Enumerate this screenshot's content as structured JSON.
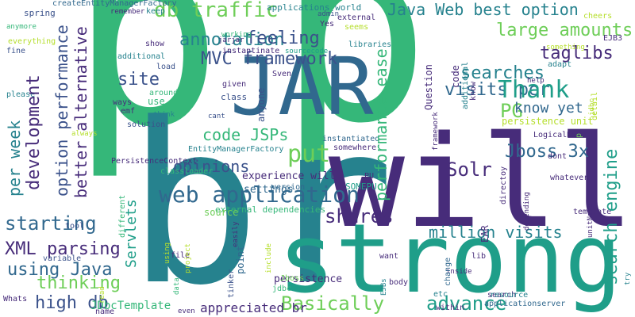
{
  "palette": {
    "background": "#ffffff",
    "dark_purple": "#472c7a",
    "indigo": "#3b528b",
    "blue": "#31688e",
    "teal": "#26828e",
    "green_teal": "#1f9e89",
    "green": "#35b779",
    "light_green": "#6ece58",
    "lime": "#b5de2b"
  },
  "words": [
    {
      "text": "p",
      "color": "#35b779",
      "rotate": false
    },
    {
      "text": "p",
      "color": "#35b779",
      "rotate": false
    },
    {
      "text": "br",
      "color": "#26828e",
      "rotate": false
    },
    {
      "text": "will",
      "color": "#472c7a",
      "rotate": false
    },
    {
      "text": "strong",
      "color": "#1f9e89",
      "rotate": false
    },
    {
      "text": "JAR",
      "color": "#31688e",
      "rotate": false
    },
    {
      "text": "Java Web best option",
      "color": "#26828e",
      "rotate": false
    },
    {
      "text": "db traffic",
      "color": "#6ece58",
      "rotate": false
    },
    {
      "text": "annotation",
      "color": "#26828e",
      "rotate": false
    },
    {
      "text": "feeling",
      "color": "#3b528b",
      "rotate": false
    },
    {
      "text": "MVC framework",
      "color": "#3b528b",
      "rotate": false
    },
    {
      "text": "large amounts",
      "color": "#6ece58",
      "rotate": false
    },
    {
      "text": "taglibs",
      "color": "#472c7a",
      "rotate": false
    },
    {
      "text": "site",
      "color": "#3b528b",
      "rotate": false
    },
    {
      "text": "searches",
      "color": "#26828e",
      "rotate": false
    },
    {
      "text": "visits per",
      "color": "#31688e",
      "rotate": false
    },
    {
      "text": "Thank",
      "color": "#1f9e89",
      "rotate": false
    },
    {
      "text": "PG",
      "color": "#6ece58",
      "rotate": false
    },
    {
      "text": "know yet",
      "color": "#31688e",
      "rotate": false
    },
    {
      "text": "code JSPs",
      "color": "#35b779",
      "rotate": false
    },
    {
      "text": "put",
      "color": "#6ece58",
      "rotate": false
    },
    {
      "text": "opinions",
      "color": "#3b528b",
      "rotate": false
    },
    {
      "text": "Jboss 3x",
      "color": "#31688e",
      "rotate": false
    },
    {
      "text": "web application",
      "color": "#31688e",
      "rotate": false
    },
    {
      "text": "Solr",
      "color": "#472c7a",
      "rotate": false
    },
    {
      "text": "starting",
      "color": "#31688e",
      "rotate": false
    },
    {
      "text": "shares",
      "color": "#472c7a",
      "rotate": false
    },
    {
      "text": "million visits",
      "color": "#26828e",
      "rotate": false
    },
    {
      "text": "XML parsing",
      "color": "#472c7a",
      "rotate": false
    },
    {
      "text": "using Java",
      "color": "#31688e",
      "rotate": false
    },
    {
      "text": "thinking",
      "color": "#6ece58",
      "rotate": false
    },
    {
      "text": "high db",
      "color": "#3b528b",
      "rotate": false
    },
    {
      "text": "Basically",
      "color": "#6ece58",
      "rotate": false
    },
    {
      "text": "advance",
      "color": "#1f9e89",
      "rotate": false
    },
    {
      "text": "appreciated br",
      "color": "#472c7a",
      "rotate": false
    },
    {
      "text": "JDbcTemplate",
      "color": "#35b779",
      "rotate": false
    },
    {
      "text": "persistence",
      "color": "#472c7a",
      "rotate": false
    },
    {
      "text": "experience will",
      "color": "#472c7a",
      "rotate": false
    },
    {
      "text": "settings",
      "color": "#31688e",
      "rotate": false
    },
    {
      "text": "SOMEPU",
      "color": "#1f9e89",
      "rotate": false
    },
    {
      "text": "external dependencies",
      "color": "#35b779",
      "rotate": false
    },
    {
      "text": "PersistenceContext",
      "color": "#472c7a",
      "rotate": false
    },
    {
      "text": "EntityManagerFactory",
      "color": "#26828e",
      "rotate": false
    },
    {
      "text": "createEntityManagerFactory",
      "color": "#31688e",
      "rotate": false
    },
    {
      "text": "applications world",
      "color": "#26828e",
      "rotate": false
    },
    {
      "text": "persistence unit",
      "color": "#b5de2b",
      "rotate": false
    },
    {
      "text": "LogicalName",
      "color": "#472c7a",
      "rotate": false
    },
    {
      "text": "applicationserver",
      "color": "#31688e",
      "rotate": false
    },
    {
      "text": "spring",
      "color": "#3b528b",
      "rotate": false
    },
    {
      "text": "remember",
      "color": "#472c7a",
      "rotate": false
    },
    {
      "text": "keep",
      "color": "#26828e",
      "rotate": false
    },
    {
      "text": "admin",
      "color": "#3b528b",
      "rotate": false
    },
    {
      "text": "Yes",
      "color": "#472c7a",
      "rotate": false
    },
    {
      "text": "external",
      "color": "#472c7a",
      "rotate": false
    },
    {
      "text": "seems",
      "color": "#b5de2b",
      "rotate": false
    },
    {
      "text": "cheers",
      "color": "#b5de2b",
      "rotate": false
    },
    {
      "text": "EJB3",
      "color": "#472c7a",
      "rotate": false
    },
    {
      "text": "anymore",
      "color": "#35b779",
      "rotate": false
    },
    {
      "text": "everything",
      "color": "#b5de2b",
      "rotate": false
    },
    {
      "text": "fine",
      "color": "#3b528b",
      "rotate": false
    },
    {
      "text": "please",
      "color": "#26828e",
      "rotate": false
    },
    {
      "text": "show",
      "color": "#472c7a",
      "rotate": false
    },
    {
      "text": "additional",
      "color": "#26828e",
      "rotate": false
    },
    {
      "text": "load",
      "color": "#3b528b",
      "rotate": false
    },
    {
      "text": "working",
      "color": "#35b779",
      "rotate": false
    },
    {
      "text": "jarjar",
      "color": "#472c7a",
      "rotate": false
    },
    {
      "text": "instantinate",
      "color": "#472c7a",
      "rotate": false
    },
    {
      "text": "libraries",
      "color": "#26828e",
      "rotate": false
    },
    {
      "text": "sourcecode",
      "color": "#1f9e89",
      "rotate": false
    },
    {
      "text": "something",
      "color": "#b5de2b",
      "rotate": false
    },
    {
      "text": "adapt",
      "color": "#26828e",
      "rotate": false
    },
    {
      "text": "help",
      "color": "#472c7a",
      "rotate": false
    },
    {
      "text": "ways",
      "color": "#472c7a",
      "rotate": false
    },
    {
      "text": "emf",
      "color": "#472c7a",
      "rotate": false
    },
    {
      "text": "think",
      "color": "#26828e",
      "rotate": false
    },
    {
      "text": "solution",
      "color": "#3b528b",
      "rotate": false
    },
    {
      "text": "use",
      "color": "#35b779",
      "rotate": false
    },
    {
      "text": "around",
      "color": "#35b779",
      "rotate": false
    },
    {
      "text": "given",
      "color": "#472c7a",
      "rotate": false
    },
    {
      "text": "Sven",
      "color": "#472c7a",
      "rotate": false
    },
    {
      "text": "class",
      "color": "#3b528b",
      "rotate": false
    },
    {
      "text": "cant",
      "color": "#3b528b",
      "rotate": false
    },
    {
      "text": "always",
      "color": "#b5de2b",
      "rotate": false
    },
    {
      "text": "instantiated",
      "color": "#31688e",
      "rotate": false
    },
    {
      "text": "somewhere",
      "color": "#472c7a",
      "rotate": false
    },
    {
      "text": "dont",
      "color": "#472c7a",
      "rotate": false
    },
    {
      "text": "classloader",
      "color": "#35b779",
      "rotate": false
    },
    {
      "text": "PU",
      "color": "#472c7a",
      "rotate": false
    },
    {
      "text": "version",
      "color": "#31688e",
      "rotate": false
    },
    {
      "text": "whatever",
      "color": "#472c7a",
      "rotate": false
    },
    {
      "text": "template",
      "color": "#472c7a",
      "rotate": false
    },
    {
      "text": "tool",
      "color": "#3b528b",
      "rotate": false
    },
    {
      "text": "source",
      "color": "#6ece58",
      "rotate": false
    },
    {
      "text": "Whats",
      "color": "#472c7a",
      "rotate": false
    },
    {
      "text": "variable",
      "color": "#3b528b",
      "rotate": false
    },
    {
      "text": "file",
      "color": "#472c7a",
      "rotate": false
    },
    {
      "text": "want",
      "color": "#472c7a",
      "rotate": false
    },
    {
      "text": "lib",
      "color": "#472c7a",
      "rotate": false
    },
    {
      "text": "inside",
      "color": "#472c7a",
      "rotate": false
    },
    {
      "text": "body",
      "color": "#472c7a",
      "rotate": false
    },
    {
      "text": "etc",
      "color": "#26828e",
      "rotate": false
    },
    {
      "text": "search",
      "color": "#472c7a",
      "rotate": false
    },
    {
      "text": "resource",
      "color": "#26828e",
      "rotate": false
    },
    {
      "text": "within",
      "color": "#472c7a",
      "rotate": false
    },
    {
      "text": "name",
      "color": "#472c7a",
      "rotate": false
    },
    {
      "text": "even",
      "color": "#472c7a",
      "rotate": false
    },
    {
      "text": "jdbc",
      "color": "#35b779",
      "rotate": false
    },
    {
      "text": "Jboss",
      "color": "#6ece58",
      "rotate": false
    },
    {
      "text": "per week",
      "color": "#26828e",
      "rotate": true
    },
    {
      "text": "development",
      "color": "#472c7a",
      "rotate": true
    },
    {
      "text": "option performance",
      "color": "#3b528b",
      "rotate": true
    },
    {
      "text": "better alternative",
      "color": "#472c7a",
      "rotate": true
    },
    {
      "text": "performance ease",
      "color": "#35b779",
      "rotate": true
    },
    {
      "text": "Servlets",
      "color": "#1f9e89",
      "rotate": true
    },
    {
      "text": "search engine",
      "color": "#1f9e89",
      "rotate": true
    },
    {
      "text": "anyone",
      "color": "#3b528b",
      "rotate": true
    },
    {
      "text": "Question",
      "color": "#472c7a",
      "rotate": true
    },
    {
      "text": "framework",
      "color": "#472c7a",
      "rotate": true
    },
    {
      "text": "code",
      "color": "#472c7a",
      "rotate": true
    },
    {
      "text": "know",
      "color": "#472c7a",
      "rotate": true
    },
    {
      "text": "additional",
      "color": "#26828e",
      "rotate": true
    },
    {
      "text": "EAR",
      "color": "#472c7a",
      "rotate": true
    },
    {
      "text": "directoy",
      "color": "#472c7a",
      "rotate": true
    },
    {
      "text": "depending",
      "color": "#472c7a",
      "rotate": true
    },
    {
      "text": "jdbc",
      "color": "#b5de2b",
      "rotate": true
    },
    {
      "text": "detail",
      "color": "#b5de2b",
      "rotate": true
    },
    {
      "text": "different",
      "color": "#35b779",
      "rotate": true
    },
    {
      "text": "easily",
      "color": "#472c7a",
      "rotate": true
    },
    {
      "text": "point",
      "color": "#31688e",
      "rotate": true
    },
    {
      "text": "tinker",
      "color": "#3b528b",
      "rotate": true
    },
    {
      "text": "include",
      "color": "#b5de2b",
      "rotate": true
    },
    {
      "text": "using",
      "color": "#b5de2b",
      "rotate": true
    },
    {
      "text": "project",
      "color": "#b5de2b",
      "rotate": true
    },
    {
      "text": "data",
      "color": "#35b779",
      "rotate": true
    },
    {
      "text": "EJBs",
      "color": "#26828e",
      "rotate": true
    },
    {
      "text": "change",
      "color": "#31688e",
      "rotate": true
    },
    {
      "text": "unitName",
      "color": "#472c7a",
      "rotate": true
    },
    {
      "text": "try",
      "color": "#26828e",
      "rotate": true
    },
    {
      "text": "read",
      "color": "#b5de2b",
      "rotate": true
    },
    {
      "text": "p",
      "color": "#6ece58",
      "rotate": true
    }
  ]
}
